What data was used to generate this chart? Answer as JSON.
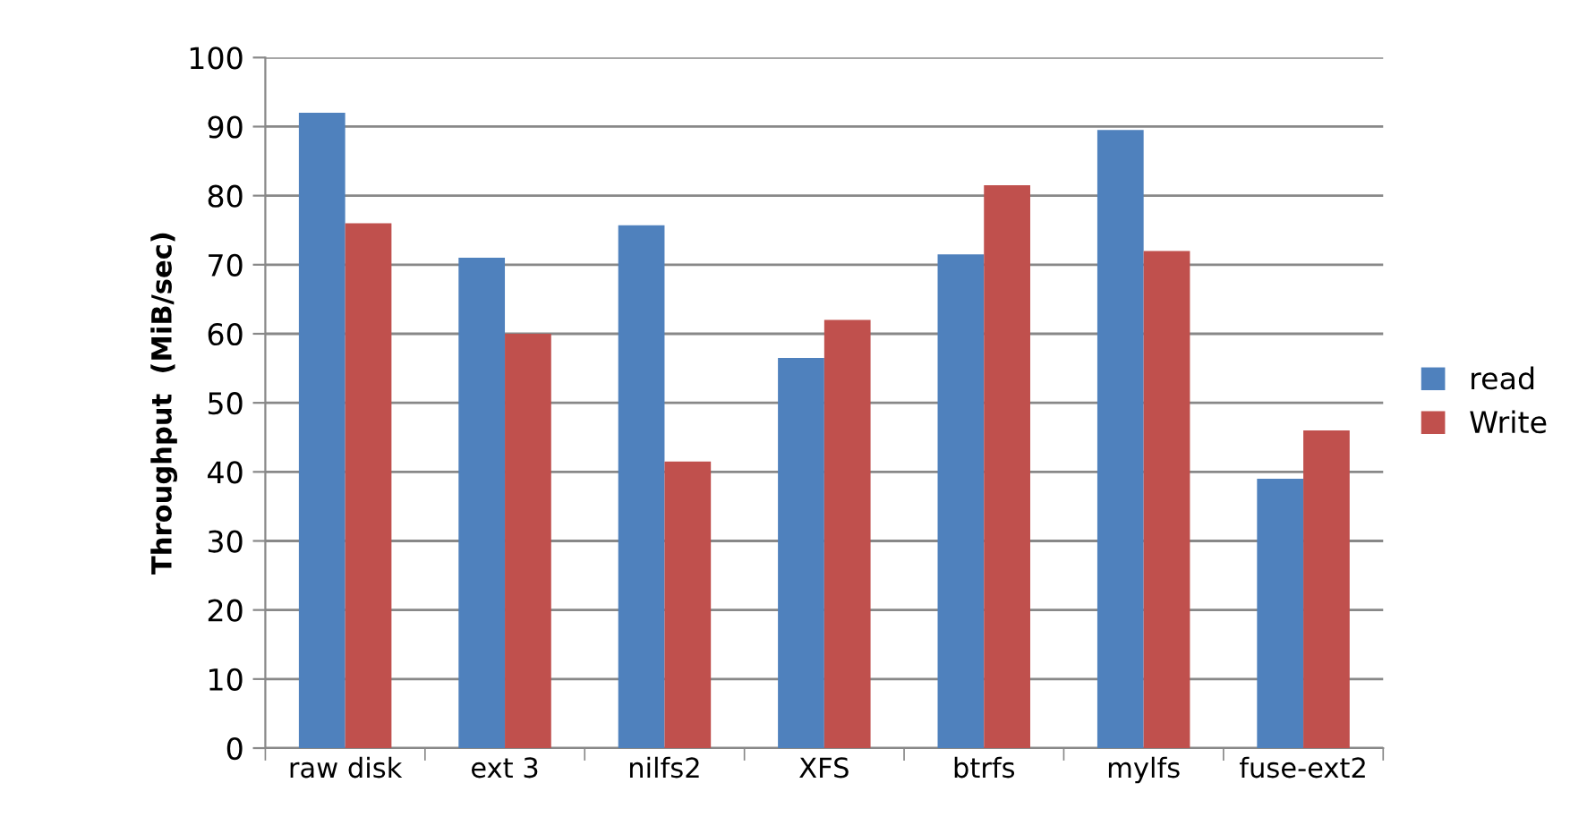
{
  "chart_data": {
    "type": "bar",
    "ylabel": "Throughput  (MiB/sec)",
    "categories": [
      "raw disk",
      "ext 3",
      "nilfs2",
      "XFS",
      "btrfs",
      "mylfs",
      "fuse-ext2"
    ],
    "series": [
      {
        "name": "read",
        "color": "#4f81bd",
        "values": [
          92,
          71,
          75.7,
          56.5,
          71.5,
          89.5,
          39
        ]
      },
      {
        "name": "Write",
        "color": "#c0504d",
        "values": [
          76,
          60,
          41.5,
          62,
          81.5,
          72,
          46
        ]
      }
    ],
    "ylim": [
      0,
      100
    ],
    "yticks": [
      0,
      10,
      20,
      30,
      40,
      50,
      60,
      70,
      80,
      90,
      100
    ],
    "grid": "y",
    "legend": "right"
  }
}
